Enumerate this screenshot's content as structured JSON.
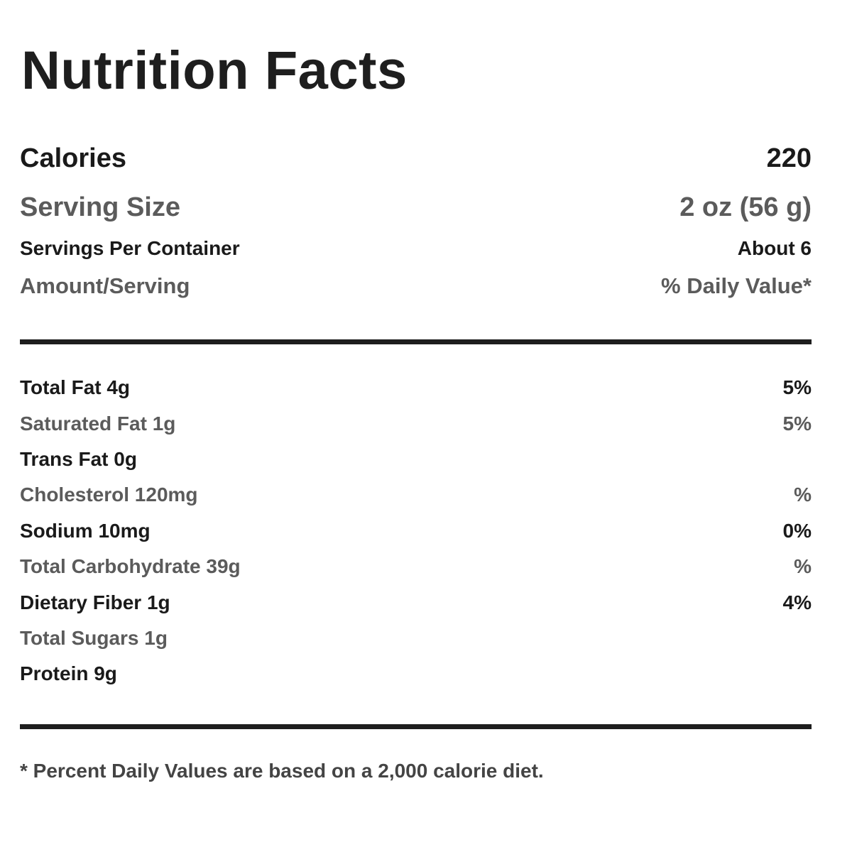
{
  "title": "Nutrition Facts",
  "summary": {
    "calories": {
      "label": "Calories",
      "value": "220"
    },
    "serving_size": {
      "label": "Serving Size",
      "value": "2 oz (56 g)"
    },
    "servings_per_container": {
      "label": "Servings Per Container",
      "value": "About 6"
    },
    "header": {
      "left": "Amount/Serving",
      "right": "% Daily Value*"
    }
  },
  "nutrients": [
    {
      "name": "Total Fat 4g",
      "dv": "5%"
    },
    {
      "name": "Saturated Fat 1g",
      "dv": "5%"
    },
    {
      "name": "Trans Fat 0g",
      "dv": ""
    },
    {
      "name": "Cholesterol 120mg",
      "dv": "%"
    },
    {
      "name": "Sodium 10mg",
      "dv": "0%"
    },
    {
      "name": "Total Carbohydrate 39g",
      "dv": "%"
    },
    {
      "name": "Dietary Fiber 1g",
      "dv": "4%"
    },
    {
      "name": "Total Sugars 1g",
      "dv": ""
    },
    {
      "name": "Protein 9g",
      "dv": ""
    }
  ],
  "footnote": "* Percent Daily Values are based on a 2,000 calorie diet."
}
